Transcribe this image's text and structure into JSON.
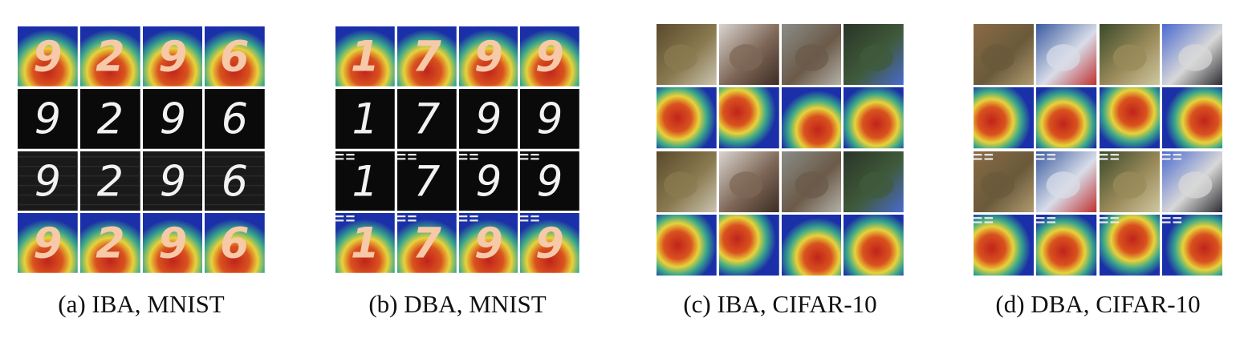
{
  "figure": {
    "panels": [
      {
        "caption": "(a) IBA, MNIST",
        "dataset": "MNIST",
        "digits": [
          "9",
          "2",
          "9",
          "6"
        ],
        "rows": [
          "heatmap-overlay",
          "clean-digit",
          "triggered-digit",
          "heatmap-overlay"
        ]
      },
      {
        "caption": "(b) DBA, MNIST",
        "dataset": "MNIST",
        "digits": [
          "1",
          "7",
          "9",
          "9"
        ],
        "rows": [
          "heatmap-overlay",
          "clean-digit",
          "triggered-digit",
          "heatmap-overlay"
        ]
      },
      {
        "caption": "(c) IBA, CIFAR-10",
        "dataset": "CIFAR-10",
        "rows": [
          "photo",
          "heatmap",
          "photo-triggered",
          "heatmap"
        ]
      },
      {
        "caption": "(d) DBA, CIFAR-10",
        "dataset": "CIFAR-10",
        "rows": [
          "photo",
          "heatmap",
          "photo-triggered",
          "heatmap"
        ]
      }
    ],
    "colors": {
      "heat_red": "#c0241c",
      "heat_yellow": "#e8d23a",
      "heat_green": "#3aa88a",
      "heat_blue": "#1a2fa8",
      "digit_bg": "#0a0a0a",
      "digit_fg": "#f2f2f2",
      "trigger": "#e8e8e8"
    }
  }
}
